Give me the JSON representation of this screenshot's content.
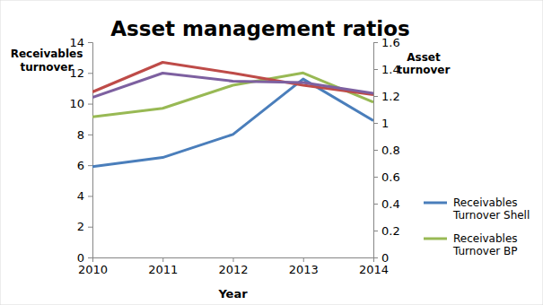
{
  "chart_data": {
    "type": "line",
    "title": "Asset management ratios",
    "x_label": "Year",
    "y_label": "Receivables turnover",
    "y2_label": "Asset turnover",
    "x": [
      2010,
      2011,
      2012,
      2013,
      2014
    ],
    "xlim": [
      2010,
      2014
    ],
    "xticks": [
      2010,
      2011,
      2012,
      2013,
      2014
    ],
    "ylim": [
      0,
      14
    ],
    "yticks": [
      0,
      2,
      4,
      6,
      8,
      10,
      12,
      14
    ],
    "y2lim": [
      0,
      1.6
    ],
    "y2ticks": [
      0,
      0.2,
      0.4,
      0.6,
      0.8,
      1,
      1.2,
      1.4,
      1.6
    ],
    "grid": false,
    "legend": "right",
    "series": [
      {
        "name": "Receivables Turnover Shell",
        "color": "#4a7ebb",
        "values": [
          5.9,
          6.5,
          8.0,
          11.6,
          8.9
        ]
      },
      {
        "name": "Receivables Turnover BP",
        "color": "#98b954",
        "values": [
          9.15,
          9.7,
          11.2,
          12.0,
          10.1
        ]
      },
      {
        "color": "#be4b48",
        "axis": "y2",
        "values": [
          1.23,
          1.45,
          1.37,
          1.28,
          1.21
        ]
      },
      {
        "color": "#7d60a0",
        "axis": "y2",
        "values": [
          1.19,
          1.37,
          1.31,
          1.3,
          1.22
        ]
      }
    ]
  }
}
